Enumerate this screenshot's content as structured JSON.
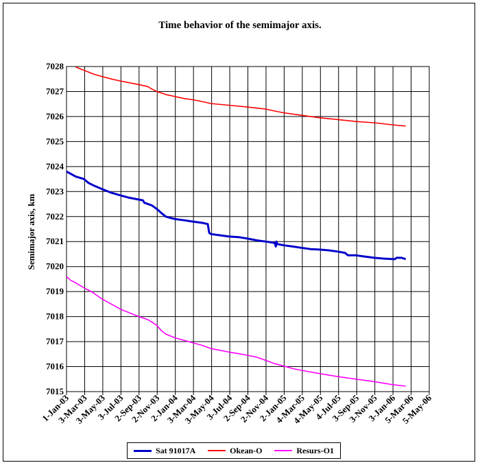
{
  "chart_data": {
    "type": "line",
    "title": "Time behavior of the semimajor axis.",
    "xlabel": "",
    "ylabel": "Semimajor axis, km",
    "x_tick_labels": [
      "1-Jan-03",
      "3-Mar-03",
      "3-May-03",
      "3-Jul-03",
      "2-Sep-03",
      "2-Nov-03",
      "2-Jan-04",
      "3-Mar-04",
      "3-May-04",
      "3-Jul-04",
      "2-Sep-04",
      "2-Nov-04",
      "2-Jan-05",
      "4-Mar-05",
      "4-May-05",
      "4-Jul-05",
      "3-Sep-05",
      "3-Nov-05",
      "3-Jan-06",
      "5-Mar-06",
      "5-May-06"
    ],
    "y_ticks": [
      7015,
      7016,
      7017,
      7018,
      7019,
      7020,
      7021,
      7022,
      7023,
      7024,
      7025,
      7026,
      7027,
      7028
    ],
    "ylim": [
      7015,
      7028
    ],
    "grid": true,
    "legend_placement": "bottom",
    "series": [
      {
        "name": "Sat 91017A",
        "color": "#0000cc",
        "x": [
          "1-Jan-03",
          "1-Feb-03",
          "1-Mar-03",
          "15-Mar-03",
          "1-Apr-03",
          "1-May-03",
          "1-Jun-03",
          "1-Jul-03",
          "1-Aug-03",
          "15-Sep-03",
          "20-Sep-03",
          "15-Oct-03",
          "1-Nov-03",
          "15-Nov-03",
          "1-Dec-03",
          "15-Dec-03",
          "1-Jan-04",
          "1-Feb-04",
          "1-Mar-04",
          "1-Apr-04",
          "20-Apr-04",
          "25-Apr-04",
          "1-May-04",
          "1-Jun-04",
          "1-Jul-04",
          "1-Aug-04",
          "1-Sep-04",
          "1-Oct-04",
          "1-Nov-04",
          "1-Dec-04",
          "5-Dec-04",
          "7-Dec-04",
          "10-Dec-04",
          "1-Jan-05",
          "1-Feb-05",
          "1-Mar-05",
          "1-Apr-05",
          "1-May-05",
          "1-Jun-05",
          "1-Jul-05",
          "25-Jul-05",
          "5-Aug-05",
          "1-Sep-05",
          "1-Oct-05",
          "1-Nov-05",
          "1-Dec-05",
          "1-Jan-06",
          "10-Jan-06",
          "15-Jan-06",
          "1-Feb-06",
          "15-Feb-06"
        ],
        "values": [
          7023.8,
          7023.6,
          7023.5,
          7023.35,
          7023.25,
          7023.1,
          7022.95,
          7022.85,
          7022.75,
          7022.65,
          7022.55,
          7022.45,
          7022.3,
          7022.15,
          7022.0,
          7021.95,
          7021.9,
          7021.85,
          7021.8,
          7021.75,
          7021.7,
          7021.35,
          7021.3,
          7021.25,
          7021.2,
          7021.18,
          7021.12,
          7021.05,
          7021.0,
          7020.95,
          7020.8,
          7021.0,
          7020.9,
          7020.85,
          7020.8,
          7020.75,
          7020.7,
          7020.68,
          7020.65,
          7020.6,
          7020.55,
          7020.45,
          7020.45,
          7020.4,
          7020.35,
          7020.32,
          7020.3,
          7020.3,
          7020.35,
          7020.35,
          7020.3
        ]
      },
      {
        "name": "Okean-O",
        "color": "#ff0000",
        "x": [
          "1-Feb-03",
          "1-Mar-03",
          "1-Apr-03",
          "1-May-03",
          "1-Jun-03",
          "1-Jul-03",
          "1-Aug-03",
          "1-Sep-03",
          "1-Oct-03",
          "15-Oct-03",
          "1-Nov-03",
          "1-Dec-03",
          "1-Jan-04",
          "1-Feb-04",
          "1-Mar-04",
          "1-Apr-04",
          "1-May-04",
          "1-Jul-04",
          "1-Sep-04",
          "1-Nov-04",
          "1-Dec-04",
          "1-Jan-05",
          "1-Mar-05",
          "1-May-05",
          "1-Jul-05",
          "1-Sep-05",
          "1-Nov-05",
          "1-Jan-06",
          "15-Feb-06"
        ],
        "values": [
          7027.98,
          7027.85,
          7027.7,
          7027.6,
          7027.5,
          7027.42,
          7027.35,
          7027.28,
          7027.2,
          7027.1,
          7027.0,
          7026.88,
          7026.8,
          7026.72,
          7026.67,
          7026.6,
          7026.52,
          7026.45,
          7026.38,
          7026.3,
          7026.22,
          7026.15,
          7026.05,
          7025.95,
          7025.88,
          7025.8,
          7025.75,
          7025.67,
          7025.62
        ]
      },
      {
        "name": "Resurs-O1",
        "color": "#ff00ff",
        "x": [
          "1-Jan-03",
          "15-Jan-03",
          "1-Feb-03",
          "1-Mar-03",
          "1-Apr-03",
          "1-May-03",
          "1-Jun-03",
          "1-Jul-03",
          "1-Aug-03",
          "1-Sep-03",
          "1-Oct-03",
          "15-Oct-03",
          "1-Nov-03",
          "15-Nov-03",
          "1-Dec-03",
          "1-Jan-04",
          "1-Feb-04",
          "1-Mar-04",
          "1-Apr-04",
          "1-May-04",
          "1-Jun-04",
          "1-Jul-04",
          "1-Aug-04",
          "1-Sep-04",
          "1-Oct-04",
          "1-Nov-04",
          "1-Dec-04",
          "1-Jan-05",
          "1-Feb-05",
          "1-Mar-05",
          "1-May-05",
          "1-Jul-05",
          "1-Sep-05",
          "1-Nov-05",
          "1-Jan-06",
          "15-Feb-06"
        ],
        "values": [
          7019.6,
          7019.45,
          7019.35,
          7019.15,
          7018.95,
          7018.7,
          7018.5,
          7018.3,
          7018.15,
          7018.0,
          7017.88,
          7017.78,
          7017.65,
          7017.45,
          7017.3,
          7017.15,
          7017.05,
          7016.95,
          7016.85,
          7016.72,
          7016.65,
          7016.58,
          7016.52,
          7016.45,
          7016.38,
          7016.25,
          7016.12,
          7016.02,
          7015.92,
          7015.85,
          7015.72,
          7015.6,
          7015.5,
          7015.4,
          7015.28,
          7015.22
        ]
      }
    ]
  }
}
